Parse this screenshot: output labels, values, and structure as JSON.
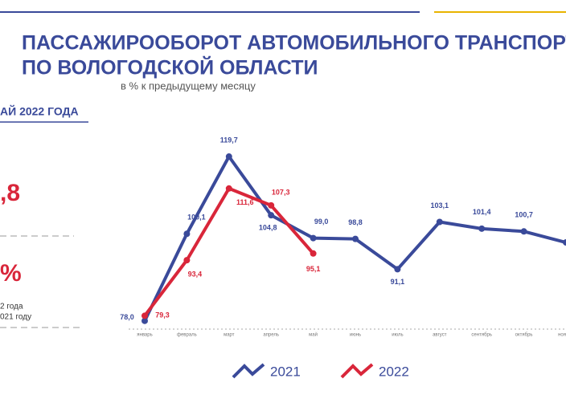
{
  "title": "ПАССАЖИРООБОРОТ АВТОМОБИЛЬНОГО ТРАНСПОРТ",
  "title_line2": "ПО ВОЛОГОДСКОЙ ОБЛАСТИ",
  "left_panel": {
    "heading": "АЙ 2022 ГОДА",
    "value": ",8",
    "value2": "%",
    "note": "2 года",
    "note2": "021 году"
  },
  "chart_data": {
    "type": "line",
    "subtitle": "в % к предыдущему месяцу",
    "categories": [
      "январь",
      "февраль",
      "март",
      "апрель",
      "май",
      "июнь",
      "июль",
      "август",
      "сентябрь",
      "октябрь",
      "ноябрь"
    ],
    "series": [
      {
        "name": "2021",
        "color": "#3a4a9a",
        "values": [
          78.0,
          100.1,
          119.7,
          104.8,
          99.0,
          98.8,
          91.1,
          103.1,
          101.4,
          100.7,
          97.9
        ],
        "value_labels": [
          "78,0",
          "100,1",
          "119,7",
          "104,8",
          "99,0",
          "98,8",
          "91,1",
          "103,1",
          "101,4",
          "100,7",
          null
        ]
      },
      {
        "name": "2022",
        "color": "#d9263a",
        "values": [
          79.3,
          93.4,
          111.6,
          107.3,
          95.1,
          null,
          null,
          null,
          null,
          null,
          null
        ],
        "value_labels": [
          "79,3",
          "93,4",
          "111,6",
          "107,3",
          "95,1",
          null,
          null,
          null,
          null,
          null,
          null
        ]
      }
    ],
    "ylim": [
      70,
      125
    ]
  }
}
